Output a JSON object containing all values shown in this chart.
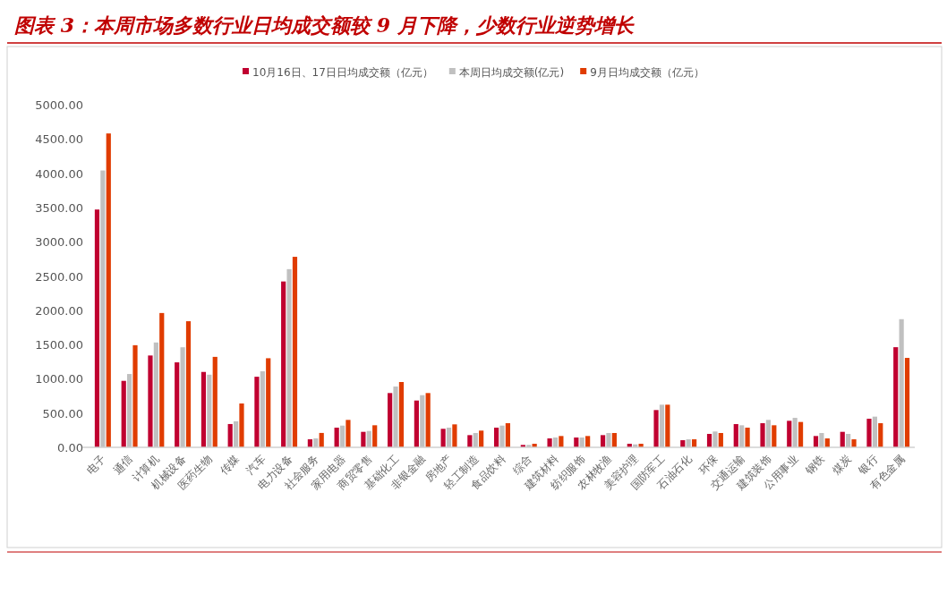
{
  "chart_data": {
    "type": "bar",
    "title": "图表 3：本周市场多数行业日均成交额较 9 月下降，少数行业逆势增长",
    "categories": [
      "电子",
      "通信",
      "计算机",
      "机械设备",
      "医药生物",
      "传媒",
      "汽车",
      "电力设备",
      "社会服务",
      "家用电器",
      "商贸零售",
      "基础化工",
      "非银金融",
      "房地产",
      "轻工制造",
      "食品饮料",
      "综合",
      "建筑材料",
      "纺织服饰",
      "农林牧渔",
      "美容护理",
      "国防军工",
      "石油石化",
      "环保",
      "交通运输",
      "建筑装饰",
      "公用事业",
      "钢铁",
      "煤炭",
      "银行",
      "有色金属"
    ],
    "series": [
      {
        "name": "10月16日、17日日均成交额（亿元）",
        "color": "#c00030",
        "values": [
          3470,
          970,
          1340,
          1240,
          1100,
          340,
          1030,
          2420,
          117,
          287,
          226,
          792,
          683,
          270,
          178,
          287,
          35,
          130,
          143,
          178,
          52,
          544,
          104,
          196,
          339,
          352,
          387,
          165,
          226,
          417,
          1461
        ]
      },
      {
        "name": "本周日均成交额(亿元)",
        "color": "#c0c0c0",
        "values": [
          4040,
          1070,
          1530,
          1460,
          1060,
          380,
          1110,
          2600,
          130,
          317,
          239,
          887,
          761,
          287,
          209,
          317,
          35,
          143,
          143,
          209,
          43,
          622,
          117,
          231,
          322,
          400,
          430,
          209,
          196,
          448,
          1870
        ]
      },
      {
        "name": "9月日均成交额（亿元）",
        "color": "#e03c00",
        "values": [
          4580,
          1490,
          1960,
          1840,
          1320,
          640,
          1300,
          2780,
          210,
          400,
          322,
          953,
          792,
          335,
          244,
          352,
          52,
          165,
          165,
          209,
          52,
          622,
          117,
          209,
          287,
          322,
          370,
          130,
          117,
          352,
          1305
        ]
      }
    ],
    "ylim": [
      0,
      5000
    ],
    "yticks": [
      {
        "value": 0,
        "label": "0.00"
      },
      {
        "value": 500,
        "label": "500.00"
      },
      {
        "value": 1000,
        "label": "1000.00"
      },
      {
        "value": 1500,
        "label": "1500.00"
      },
      {
        "value": 2000,
        "label": "2000.00"
      },
      {
        "value": 2500,
        "label": "2500.00"
      },
      {
        "value": 3000,
        "label": "3000.00"
      },
      {
        "value": 3500,
        "label": "3500.00"
      },
      {
        "value": 4000,
        "label": "4000.00"
      },
      {
        "value": 4500,
        "label": "4500.00"
      },
      {
        "value": 5000,
        "label": "5000.00"
      }
    ],
    "legend": "top"
  }
}
